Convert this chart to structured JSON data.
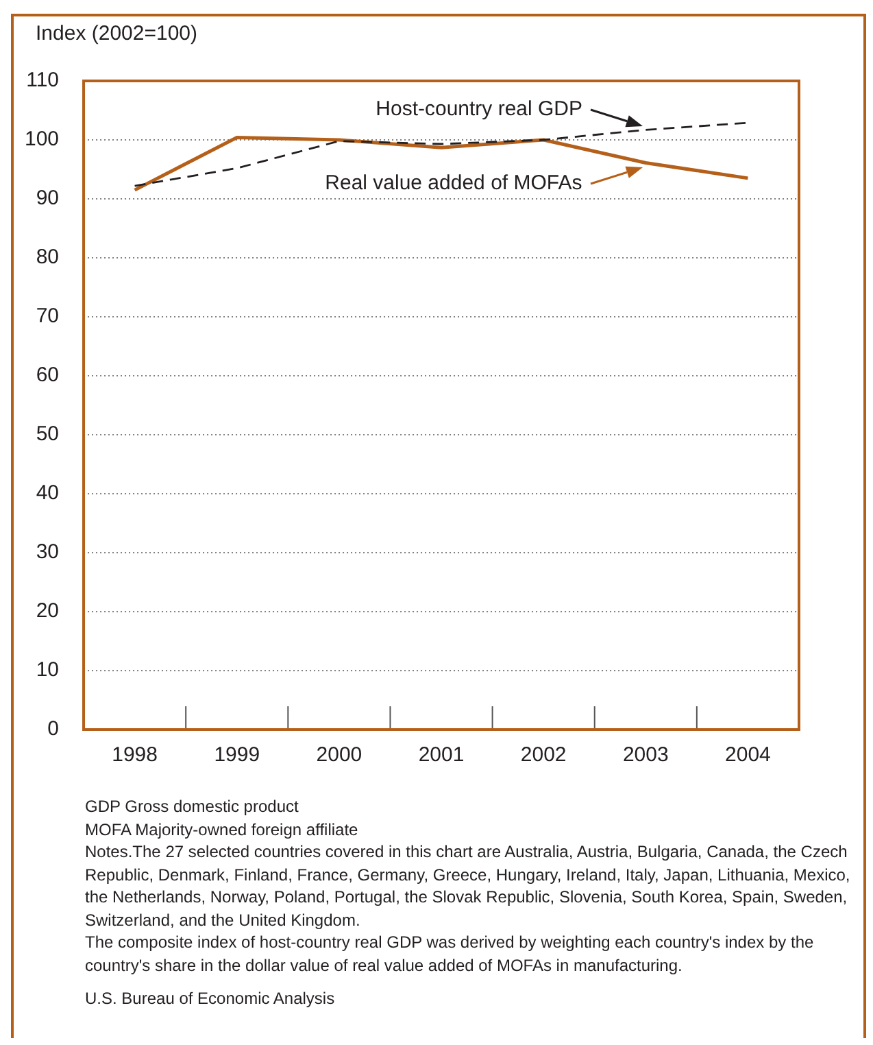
{
  "chart_data": {
    "type": "line",
    "ylabel": "Index (2002=100)",
    "categories": [
      "1998",
      "1999",
      "2000",
      "2001",
      "2002",
      "2003",
      "2004"
    ],
    "series": [
      {
        "name": "Host-country real GDP",
        "color": "#231f20",
        "line_style": "dashed",
        "values": [
          92.2,
          95.2,
          99.8,
          99.3,
          100,
          101.7,
          102.9
        ]
      },
      {
        "name": "Real value added of MOFAs",
        "color": "#b5601a",
        "line_style": "solid",
        "values": [
          91.5,
          100.4,
          100,
          98.7,
          100,
          96.1,
          93.5
        ]
      }
    ],
    "ylim": [
      0,
      110
    ],
    "yticks": [
      0,
      10,
      20,
      30,
      40,
      50,
      60,
      70,
      80,
      90,
      100,
      110
    ],
    "grid": "y",
    "legend": "top",
    "marker": "none",
    "annotations": [
      "GDP Gross domestic product",
      "MOFA Majority-owned foreign affiliate",
      "Notes.The 27 selected countries covered in this chart are Australia, Austria, Bulgaria, Canada, the Czech Republic, Denmark, Finland, France, Germany, Greece, Hungary, Ireland, Italy, Japan, Lithuania, Mexico, the Netherlands, Norway, Poland, Portugal, the Slovak Republic, Slovenia, South Korea, Spain, Sweden, Switzerland, and the United Kingdom.",
      "The composite index of host-country real GDP was derived by weighting each country's index by the country's share in the dollar value of real value added of MOFAs in manufacturing.",
      "U.S. Bureau of Economic Analysis"
    ]
  }
}
